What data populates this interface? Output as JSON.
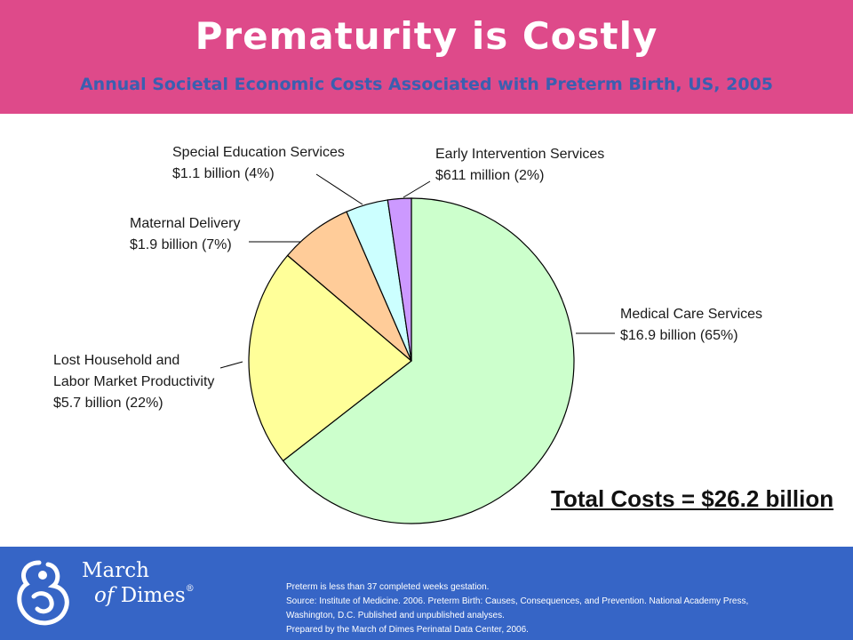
{
  "header": {
    "title": "Prematurity is Costly",
    "subtitle": "Annual Societal Economic Costs Associated with Preterm Birth, US, 2005"
  },
  "chart_data": {
    "type": "pie",
    "title": "Prematurity is Costly",
    "subtitle": "Annual Societal Economic Costs Associated with Preterm Birth, US, 2005",
    "unit": "billion USD",
    "slices": [
      {
        "name": "Medical Care Services",
        "value": 16.9,
        "percent": 65,
        "line1": "Medical Care Services",
        "line2": "$16.9 billion (65%)",
        "color": "#ccffcc"
      },
      {
        "name": "Lost Household and Labor Market Productivity",
        "value": 5.7,
        "percent": 22,
        "line1": "Lost Household and",
        "line1b": "Labor Market Productivity",
        "line2": "$5.7 billion (22%)",
        "color": "#ffff99"
      },
      {
        "name": "Maternal Delivery",
        "value": 1.9,
        "percent": 7,
        "line1": "Maternal Delivery",
        "line2": "$1.9 billion (7%)",
        "color": "#ffcc99"
      },
      {
        "name": "Special Education Services",
        "value": 1.1,
        "percent": 4,
        "line1": "Special Education Services",
        "line2": "$1.1 billion (4%)",
        "color": "#ccffff"
      },
      {
        "name": "Early Intervention Services",
        "value": 0.611,
        "percent": 2,
        "line1": "Early Intervention Services",
        "line2": "$611 million (2%)",
        "color": "#cc99ff"
      }
    ],
    "total_label": "Total Costs = $26.2 billion"
  },
  "footer": {
    "logo_line1": "March",
    "logo_of": "of",
    "logo_dimes": "Dimes",
    "logo_mark": "®",
    "notes": [
      "Preterm is less than 37 completed weeks gestation.",
      "Source: Institute of Medicine.  2006. Preterm Birth: Causes, Consequences, and Prevention. National Academy Press,",
      "Washington, D.C. Published and unpublished analyses.",
      "Prepared by the March of Dimes Perinatal Data Center, 2006."
    ]
  },
  "colors": {
    "header_bg": "#de4a8a",
    "subtitle": "#3b5fb0",
    "footer_bg": "#3665c6"
  }
}
